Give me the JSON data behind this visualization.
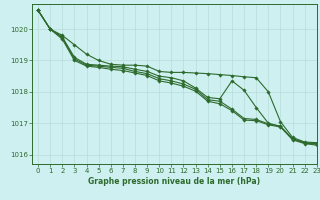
{
  "title": "Graphe pression niveau de la mer (hPa)",
  "bg_color": "#cff0f0",
  "grid_color": "#b8ddd8",
  "line_color": "#2d6a2d",
  "marker_color": "#2d6a2d",
  "xlim": [
    -0.5,
    23
  ],
  "ylim": [
    1015.7,
    1020.8
  ],
  "yticks": [
    1016,
    1017,
    1018,
    1019,
    1020
  ],
  "xticks": [
    0,
    1,
    2,
    3,
    4,
    5,
    6,
    7,
    8,
    9,
    10,
    11,
    12,
    13,
    14,
    15,
    16,
    17,
    18,
    19,
    20,
    21,
    22,
    23
  ],
  "series": [
    [
      1020.6,
      1020.0,
      1019.8,
      1019.5,
      1019.2,
      1019.0,
      1018.88,
      1018.85,
      1018.85,
      1018.82,
      1018.65,
      1018.62,
      1018.62,
      1018.6,
      1018.58,
      1018.55,
      1018.52,
      1018.48,
      1018.45,
      1018.0,
      1017.05,
      1016.55,
      1016.4,
      1016.38
    ],
    [
      1020.6,
      1020.0,
      1019.75,
      1019.1,
      1018.88,
      1018.85,
      1018.82,
      1018.8,
      1018.72,
      1018.65,
      1018.5,
      1018.45,
      1018.35,
      1018.12,
      1017.82,
      1017.78,
      1018.35,
      1018.05,
      1017.5,
      1017.0,
      1016.9,
      1016.5,
      1016.38,
      1016.35
    ],
    [
      1020.6,
      1020.0,
      1019.72,
      1019.05,
      1018.85,
      1018.82,
      1018.78,
      1018.75,
      1018.65,
      1018.58,
      1018.42,
      1018.35,
      1018.25,
      1018.08,
      1017.75,
      1017.7,
      1017.45,
      1017.15,
      1017.12,
      1016.98,
      1016.9,
      1016.5,
      1016.37,
      1016.33
    ],
    [
      1020.6,
      1020.0,
      1019.68,
      1019.0,
      1018.82,
      1018.78,
      1018.72,
      1018.68,
      1018.6,
      1018.52,
      1018.35,
      1018.28,
      1018.18,
      1018.02,
      1017.7,
      1017.62,
      1017.4,
      1017.1,
      1017.08,
      1016.95,
      1016.88,
      1016.47,
      1016.35,
      1016.3
    ]
  ]
}
